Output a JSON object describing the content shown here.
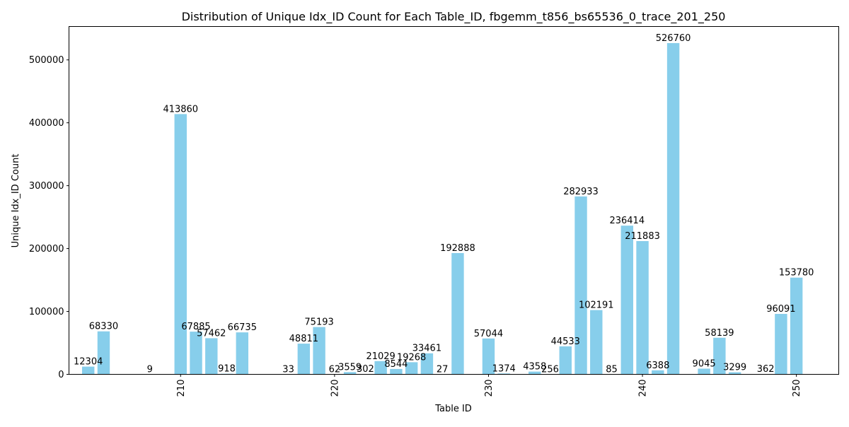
{
  "chart_data": {
    "type": "bar",
    "title": "Distribution of Unique Idx_ID Count for Each Table_ID, fbgemm_t856_bs65536_0_trace_201_250",
    "xlabel": "Table ID",
    "ylabel": "Unique Idx_ID Count",
    "xlim": [
      202.75,
      252.75
    ],
    "ylim": [
      0,
      553098
    ],
    "x_ticks": [
      210,
      220,
      230,
      240,
      250
    ],
    "y_ticks": [
      0,
      100000,
      200000,
      300000,
      400000,
      500000
    ],
    "x_tick_rotation": 90,
    "bar_color": "#87ceeb",
    "grid": false,
    "points": [
      {
        "x": 204,
        "y": 12304
      },
      {
        "x": 205,
        "y": 68330
      },
      {
        "x": 208,
        "y": 9
      },
      {
        "x": 210,
        "y": 413860
      },
      {
        "x": 211,
        "y": 67885
      },
      {
        "x": 212,
        "y": 57462
      },
      {
        "x": 213,
        "y": 918
      },
      {
        "x": 214,
        "y": 66735
      },
      {
        "x": 217,
        "y": 33
      },
      {
        "x": 218,
        "y": 48811
      },
      {
        "x": 219,
        "y": 75193
      },
      {
        "x": 220,
        "y": 62
      },
      {
        "x": 221,
        "y": 3559
      },
      {
        "x": 222,
        "y": 302
      },
      {
        "x": 223,
        "y": 21029
      },
      {
        "x": 224,
        "y": 8544
      },
      {
        "x": 225,
        "y": 19268
      },
      {
        "x": 226,
        "y": 33461
      },
      {
        "x": 227,
        "y": 27
      },
      {
        "x": 228,
        "y": 192888
      },
      {
        "x": 230,
        "y": 57044
      },
      {
        "x": 231,
        "y": 1374
      },
      {
        "x": 233,
        "y": 4358
      },
      {
        "x": 234,
        "y": 256
      },
      {
        "x": 235,
        "y": 44533
      },
      {
        "x": 236,
        "y": 282933
      },
      {
        "x": 237,
        "y": 102191
      },
      {
        "x": 238,
        "y": 85
      },
      {
        "x": 239,
        "y": 236414
      },
      {
        "x": 240,
        "y": 211883
      },
      {
        "x": 241,
        "y": 6388
      },
      {
        "x": 242,
        "y": 526760
      },
      {
        "x": 244,
        "y": 9045
      },
      {
        "x": 245,
        "y": 58139
      },
      {
        "x": 246,
        "y": 3299
      },
      {
        "x": 248,
        "y": 362
      },
      {
        "x": 249,
        "y": 96091
      },
      {
        "x": 250,
        "y": 153780
      }
    ]
  }
}
